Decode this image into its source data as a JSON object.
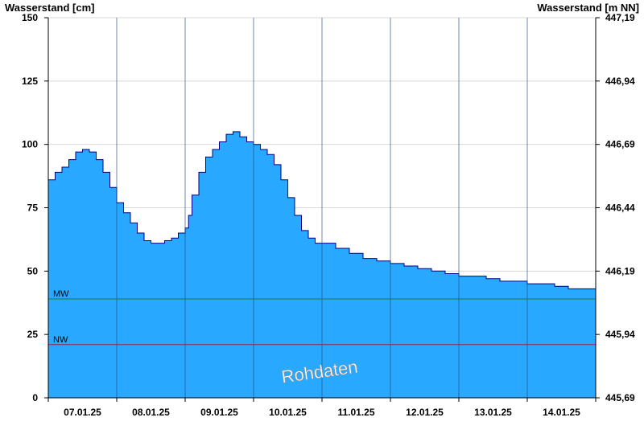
{
  "chart_data": {
    "type": "area",
    "ylabel_left": "Wasserstand [cm]",
    "ylabel_right": "Wasserstand [m NN]",
    "ylim": [
      0,
      150
    ],
    "left_ticks": [
      0,
      25,
      50,
      75,
      100,
      125,
      150
    ],
    "right_ticks": [
      "445,69",
      "445,94",
      "446,19",
      "446,44",
      "446,69",
      "446,94",
      "447,19"
    ],
    "x_labels": [
      "07.01.25",
      "08.01.25",
      "09.01.25",
      "10.01.25",
      "11.01.25",
      "12.01.25",
      "13.01.25",
      "14.01.25"
    ],
    "grid": "horizontal lines at y ticks, vertical lines at day boundaries",
    "series": [
      {
        "color": "#29a8ff",
        "line_color": "#000080",
        "points": [
          [
            0.0,
            86
          ],
          [
            0.1,
            89
          ],
          [
            0.2,
            91
          ],
          [
            0.3,
            94
          ],
          [
            0.4,
            97
          ],
          [
            0.5,
            98
          ],
          [
            0.6,
            97
          ],
          [
            0.7,
            94
          ],
          [
            0.8,
            89
          ],
          [
            0.9,
            83
          ],
          [
            1.0,
            77
          ],
          [
            1.1,
            73
          ],
          [
            1.2,
            69
          ],
          [
            1.3,
            65
          ],
          [
            1.4,
            62
          ],
          [
            1.5,
            61
          ],
          [
            1.6,
            61
          ],
          [
            1.7,
            62
          ],
          [
            1.8,
            63
          ],
          [
            1.9,
            65
          ],
          [
            2.0,
            67
          ],
          [
            2.05,
            72
          ],
          [
            2.1,
            80
          ],
          [
            2.2,
            89
          ],
          [
            2.3,
            95
          ],
          [
            2.4,
            98
          ],
          [
            2.5,
            101
          ],
          [
            2.6,
            104
          ],
          [
            2.7,
            105
          ],
          [
            2.8,
            103
          ],
          [
            2.9,
            101
          ],
          [
            3.0,
            100
          ],
          [
            3.1,
            98
          ],
          [
            3.2,
            96
          ],
          [
            3.3,
            92
          ],
          [
            3.4,
            86
          ],
          [
            3.5,
            79
          ],
          [
            3.6,
            72
          ],
          [
            3.7,
            66
          ],
          [
            3.8,
            63
          ],
          [
            3.9,
            61
          ],
          [
            4.0,
            61
          ],
          [
            4.2,
            59
          ],
          [
            4.4,
            57
          ],
          [
            4.6,
            55
          ],
          [
            4.8,
            54
          ],
          [
            5.0,
            53
          ],
          [
            5.2,
            52
          ],
          [
            5.4,
            51
          ],
          [
            5.6,
            50
          ],
          [
            5.8,
            49
          ],
          [
            6.0,
            48
          ],
          [
            6.2,
            48
          ],
          [
            6.4,
            47
          ],
          [
            6.6,
            46
          ],
          [
            6.8,
            46
          ],
          [
            7.0,
            45
          ],
          [
            7.2,
            45
          ],
          [
            7.4,
            44
          ],
          [
            7.6,
            43
          ],
          [
            7.8,
            43
          ],
          [
            8.0,
            42
          ]
        ]
      }
    ],
    "reference_lines": [
      {
        "label": "MW",
        "value": 39,
        "color": "#207a40"
      },
      {
        "label": "NW",
        "value": 21,
        "color": "#a0203a"
      }
    ],
    "watermark": "Rohdaten"
  }
}
